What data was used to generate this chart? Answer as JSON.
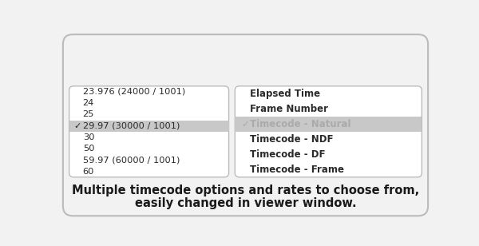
{
  "outer_bg": "#f2f2f2",
  "panel_bg": "#ffffff",
  "highlight_color": "#c8c8c8",
  "border_color": "#bbbbbb",
  "text_color": "#2a2a2a",
  "highlight_text_color": "#aaaaaa",
  "caption_line1": "Multiple timecode options and rates to choose from,",
  "caption_line2": "easily changed in viewer window.",
  "left_items": [
    {
      "text": "23.976 (24000 / 1001)",
      "highlight": false,
      "check": false
    },
    {
      "text": "24",
      "highlight": false,
      "check": false
    },
    {
      "text": "25",
      "highlight": false,
      "check": false
    },
    {
      "text": "29.97 (30000 / 1001)",
      "highlight": true,
      "check": true
    },
    {
      "text": "30",
      "highlight": false,
      "check": false
    },
    {
      "text": "50",
      "highlight": false,
      "check": false
    },
    {
      "text": "59.97 (60000 / 1001)",
      "highlight": false,
      "check": false
    },
    {
      "text": "60",
      "highlight": false,
      "check": false
    }
  ],
  "right_items": [
    {
      "text": "Elapsed Time",
      "highlight": false,
      "check": false
    },
    {
      "text": "Frame Number",
      "highlight": false,
      "check": false
    },
    {
      "text": "Timecode - Natural",
      "highlight": true,
      "check": true
    },
    {
      "text": "Timecode - NDF",
      "highlight": false,
      "check": false
    },
    {
      "text": "Timecode - DF",
      "highlight": false,
      "check": false
    },
    {
      "text": "Timecode - Frame",
      "highlight": false,
      "check": false
    }
  ]
}
